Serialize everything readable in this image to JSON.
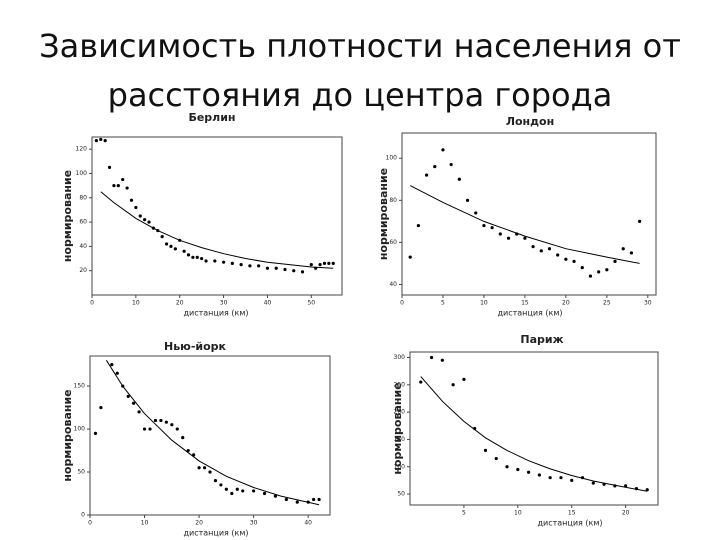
{
  "title": "Зависимость плотности населения от расстояния до центра города",
  "chart_data": [
    {
      "type": "scatter",
      "title": "Берлин",
      "xlabel": "дистанция (км)",
      "ylabel": "нормирование",
      "color": "#000000",
      "xlim": [
        0,
        57
      ],
      "xticks": [
        0,
        10,
        20,
        30,
        40,
        50
      ],
      "ylim": [
        0,
        130
      ],
      "yticks": [
        20,
        40,
        60,
        80,
        100,
        120
      ],
      "x": [
        1,
        2,
        3,
        4,
        5,
        6,
        7,
        8,
        9,
        10,
        11,
        12,
        13,
        14,
        15,
        16,
        17,
        18,
        19,
        20,
        21,
        22,
        23,
        24,
        25,
        26,
        28,
        30,
        32,
        34,
        36,
        38,
        40,
        42,
        44,
        46,
        48,
        50,
        51,
        52,
        53,
        54,
        55
      ],
      "values": [
        127,
        128,
        127,
        105,
        90,
        90,
        95,
        88,
        78,
        72,
        65,
        62,
        60,
        55,
        53,
        48,
        42,
        40,
        38,
        45,
        36,
        33,
        31,
        31,
        30,
        28,
        28,
        27,
        26,
        25,
        24,
        24,
        22,
        22,
        21,
        20,
        19,
        25,
        22,
        25,
        26,
        26,
        26
      ],
      "fit": {
        "x": [
          2,
          5,
          10,
          15,
          20,
          25,
          30,
          35,
          40,
          45,
          50,
          55
        ],
        "values": [
          85,
          76,
          63,
          53,
          45,
          39,
          34,
          30,
          27,
          25,
          23,
          22
        ]
      }
    },
    {
      "type": "scatter",
      "title": "Лондон",
      "xlabel": "дистанция (км)",
      "ylabel": "нормирование",
      "color": "#000000",
      "xlim": [
        0,
        31
      ],
      "xticks": [
        0,
        5,
        10,
        15,
        20,
        25,
        30
      ],
      "ylim": [
        35,
        112
      ],
      "yticks": [
        40,
        60,
        80,
        100
      ],
      "x": [
        1,
        2,
        3,
        4,
        5,
        6,
        7,
        8,
        9,
        10,
        11,
        12,
        13,
        14,
        15,
        16,
        17,
        18,
        19,
        20,
        21,
        22,
        23,
        24,
        25,
        26,
        27,
        28,
        29
      ],
      "values": [
        53,
        68,
        92,
        96,
        104,
        97,
        90,
        80,
        74,
        68,
        67,
        64,
        62,
        64,
        62,
        58,
        56,
        57,
        54,
        52,
        51,
        48,
        44,
        46,
        47,
        51,
        57,
        55,
        70
      ],
      "fit": {
        "x": [
          1,
          5,
          10,
          15,
          20,
          25,
          29
        ],
        "values": [
          87,
          79,
          70,
          63,
          57,
          53,
          50
        ]
      }
    },
    {
      "type": "scatter",
      "title": "Нью-йорк",
      "xlabel": "дистанция (км)",
      "ylabel": "нормирование",
      "color": "#000000",
      "xlim": [
        0,
        44
      ],
      "xticks": [
        0,
        10,
        20,
        30,
        40
      ],
      "ylim": [
        0,
        185
      ],
      "yticks": [
        0,
        50,
        100,
        150
      ],
      "x": [
        1,
        2,
        4,
        5,
        6,
        7,
        8,
        9,
        10,
        11,
        12,
        13,
        14,
        15,
        16,
        17,
        18,
        19,
        20,
        21,
        22,
        23,
        24,
        25,
        26,
        27,
        28,
        30,
        32,
        34,
        36,
        38,
        40,
        41,
        42
      ],
      "values": [
        95,
        125,
        175,
        165,
        150,
        138,
        130,
        120,
        100,
        100,
        110,
        110,
        108,
        105,
        100,
        90,
        75,
        70,
        55,
        55,
        50,
        40,
        35,
        30,
        25,
        30,
        28,
        28,
        25,
        22,
        18,
        15,
        15,
        18,
        18
      ],
      "fit": {
        "x": [
          3,
          6,
          10,
          15,
          20,
          25,
          30,
          35,
          42
        ],
        "values": [
          180,
          150,
          118,
          87,
          63,
          45,
          32,
          22,
          12
        ]
      }
    },
    {
      "type": "scatter",
      "title": "Париж",
      "xlabel": "дистанция (км)",
      "ylabel": "нормирование",
      "color": "#000000",
      "xlim": [
        0,
        23
      ],
      "xticks": [
        5,
        10,
        15,
        20
      ],
      "ylim": [
        30,
        310
      ],
      "yticks": [
        50,
        100,
        150,
        200,
        250,
        300
      ],
      "x": [
        1,
        2,
        3,
        4,
        5,
        6,
        7,
        8,
        9,
        10,
        11,
        12,
        13,
        14,
        15,
        16,
        17,
        18,
        19,
        20,
        21,
        22
      ],
      "values": [
        255,
        300,
        295,
        250,
        260,
        170,
        130,
        115,
        100,
        95,
        90,
        85,
        80,
        80,
        75,
        80,
        70,
        68,
        65,
        65,
        60,
        58
      ],
      "fit": {
        "x": [
          1,
          3,
          5,
          7,
          9,
          11,
          13,
          15,
          17,
          19,
          22
        ],
        "values": [
          265,
          220,
          183,
          153,
          130,
          111,
          96,
          84,
          74,
          66,
          55
        ]
      }
    }
  ]
}
